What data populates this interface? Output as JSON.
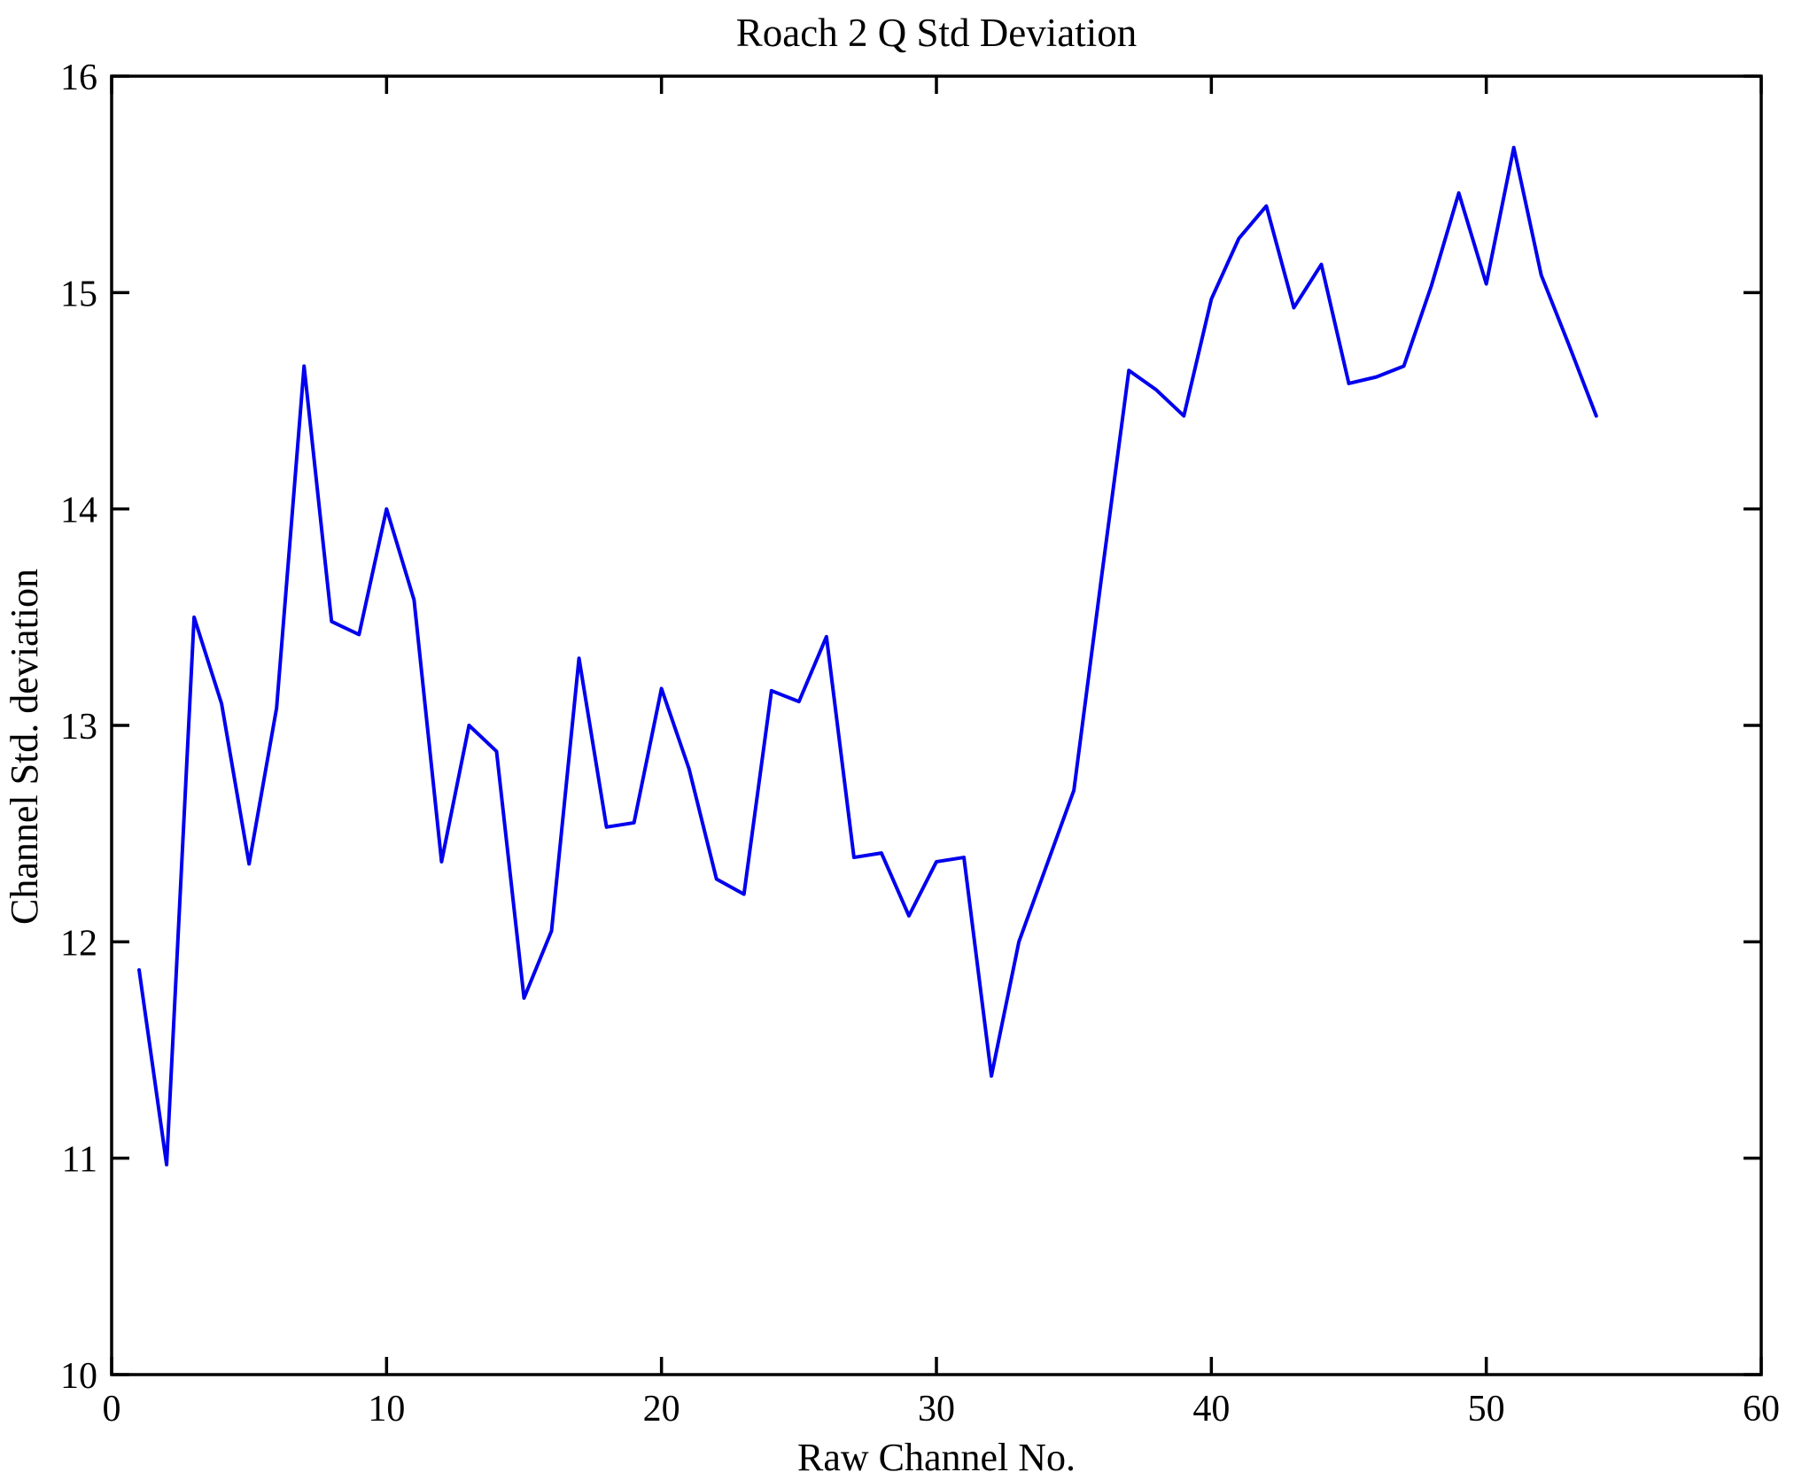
{
  "figure": {
    "title": "Roach 2 Q Std Deviation",
    "xlabel": "Raw Channel No.",
    "ylabel": "Channel Std. deviation"
  },
  "chart_data": {
    "type": "line",
    "title": "Roach 2 Q Std Deviation",
    "xlabel": "Raw Channel No.",
    "ylabel": "Channel Std. deviation",
    "xlim": [
      0,
      60
    ],
    "ylim": [
      10,
      16
    ],
    "x_ticks": [
      0,
      10,
      20,
      30,
      40,
      50,
      60
    ],
    "y_ticks": [
      10,
      11,
      12,
      13,
      14,
      15,
      16
    ],
    "grid": false,
    "legend": null,
    "box": true,
    "line_color": "#0000EE",
    "background": "#FFFFFF",
    "series_name": "Channel Std. deviation vs Raw Channel No.",
    "x": [
      1,
      2,
      3,
      4,
      5,
      6,
      7,
      8,
      9,
      10,
      11,
      12,
      13,
      14,
      15,
      16,
      17,
      18,
      19,
      20,
      21,
      22,
      23,
      24,
      25,
      26,
      27,
      28,
      29,
      30,
      31,
      32,
      33,
      34,
      35,
      36,
      37,
      38,
      39,
      40,
      41,
      42,
      43,
      44,
      45,
      46,
      47,
      48,
      49,
      50,
      51,
      52,
      53,
      54
    ],
    "values": [
      11.87,
      10.97,
      13.5,
      13.1,
      12.36,
      13.08,
      14.66,
      13.48,
      13.42,
      14.0,
      13.58,
      12.37,
      13.0,
      12.88,
      11.74,
      12.05,
      13.31,
      12.53,
      12.55,
      13.17,
      12.8,
      12.29,
      12.22,
      13.16,
      13.11,
      13.41,
      12.39,
      12.41,
      12.12,
      12.37,
      12.39,
      11.38,
      12.0,
      12.35,
      12.7,
      13.68,
      14.64,
      14.55,
      14.43,
      14.97,
      15.25,
      15.4,
      14.93,
      15.13,
      14.58,
      14.61,
      14.66,
      15.03,
      15.46,
      15.04,
      15.67,
      15.08,
      14.76,
      14.43
    ]
  }
}
